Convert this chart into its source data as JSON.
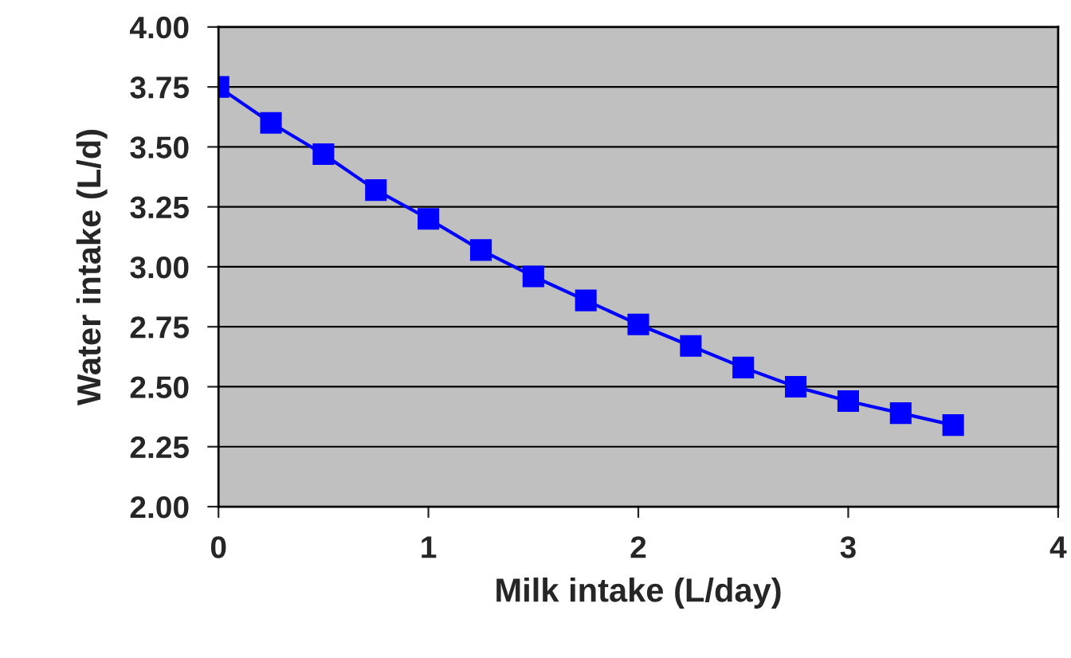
{
  "chart_data": {
    "type": "line",
    "xlabel": "Milk intake (L/day)",
    "ylabel": "Water intake (L/d)",
    "x": [
      0,
      0.25,
      0.5,
      0.75,
      1.0,
      1.25,
      1.5,
      1.75,
      2.0,
      2.25,
      2.5,
      2.75,
      3.0,
      3.25,
      3.5
    ],
    "series": [
      {
        "color": "#0000ff",
        "values": [
          3.75,
          3.6,
          3.47,
          3.32,
          3.2,
          3.07,
          2.96,
          2.86,
          2.76,
          2.67,
          2.58,
          2.5,
          2.44,
          2.39,
          2.34
        ]
      }
    ],
    "xlim": [
      0,
      4
    ],
    "xticks": [
      0,
      1,
      2,
      3,
      4
    ],
    "ylim": [
      2.0,
      4.0
    ],
    "yticks": [
      {
        "value": 2.0,
        "label": "2.00"
      },
      {
        "value": 2.25,
        "label": "2.25"
      },
      {
        "value": 2.5,
        "label": "2.50"
      },
      {
        "value": 2.75,
        "label": "2.75"
      },
      {
        "value": 3.0,
        "label": "3.00"
      },
      {
        "value": 3.25,
        "label": "3.25"
      },
      {
        "value": 3.5,
        "label": "3.50"
      },
      {
        "value": 3.75,
        "label": "3.75"
      },
      {
        "value": 4.0,
        "label": "4.00"
      }
    ],
    "grid": "y",
    "marker": "square",
    "line_style": "solid"
  }
}
